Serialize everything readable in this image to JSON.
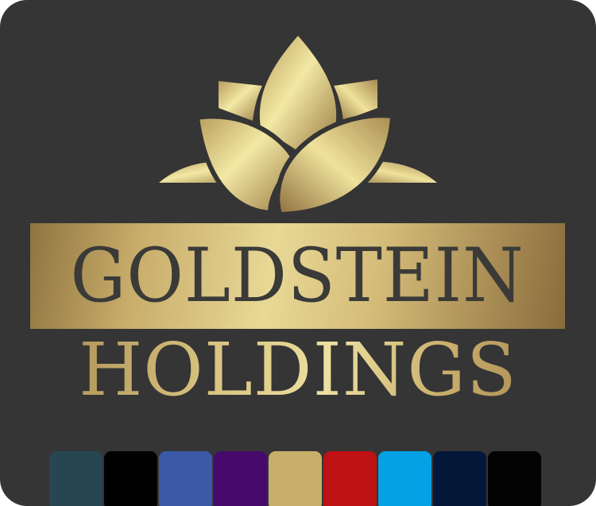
{
  "logo": {
    "line1": "GOLDSTEIN",
    "line2": "HOLDINGS"
  },
  "colors": {
    "background": "#353535",
    "gold_light": "#ece0a0",
    "gold_dark": "#8f7440",
    "text_dark": "#3a3a38"
  },
  "palette": [
    "#284552",
    "#010101",
    "#3b59a7",
    "#450a6b",
    "#c8ae6a",
    "#bd1114",
    "#04a2e4",
    "#031739",
    "#030303"
  ]
}
